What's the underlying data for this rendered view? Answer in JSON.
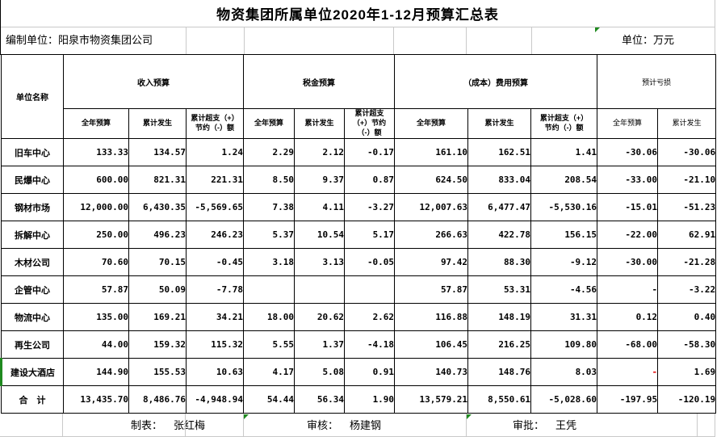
{
  "title": "物资集团所属单位2020年1-12月预算汇总表",
  "meta": {
    "prepared_by": "编制单位：阳泉市物资集团公司",
    "unit_note": "单位：万元"
  },
  "header": {
    "unit_col": "单位名称",
    "groups": [
      {
        "label": "收入预算",
        "cols": [
          "全年预算",
          "累计发生",
          "累计超支（+）\n节约（-）额"
        ]
      },
      {
        "label": "税金预算",
        "cols": [
          "全年预算",
          "累计发生",
          "累计超支\n（+）节约\n（-）额"
        ]
      },
      {
        "label": "（成本）费用预算",
        "cols": [
          "全年预算",
          "累计发生",
          "累计超支（+）\n节约（-）额"
        ]
      },
      {
        "label": "预计亏损",
        "cols": [
          "全年预算",
          "累计发生"
        ]
      }
    ]
  },
  "rows": [
    {
      "name": "旧车中心",
      "cells": [
        "133.33",
        "134.57",
        "1.24",
        "2.29",
        "2.12",
        "-0.17",
        "161.10",
        "162.51",
        "1.41",
        "-30.06",
        "-30.06"
      ]
    },
    {
      "name": "民爆中心",
      "cells": [
        "600.00",
        "821.31",
        "221.31",
        "8.50",
        "9.37",
        "0.87",
        "624.50",
        "833.04",
        "208.54",
        "-33.00",
        "-21.10"
      ]
    },
    {
      "name": "钢材市场",
      "cells": [
        "12,000.00",
        "6,430.35",
        "-5,569.65",
        "7.38",
        "4.11",
        "-3.27",
        "12,007.63",
        "6,477.47",
        "-5,530.16",
        "-15.01",
        "-51.23"
      ]
    },
    {
      "name": "拆解中心",
      "cells": [
        "250.00",
        "496.23",
        "246.23",
        "5.37",
        "10.54",
        "5.17",
        "266.63",
        "422.78",
        "156.15",
        "-22.00",
        "62.91"
      ]
    },
    {
      "name": "木材公司",
      "cells": [
        "70.60",
        "70.15",
        "-0.45",
        "3.18",
        "3.13",
        "-0.05",
        "97.42",
        "88.30",
        "-9.12",
        "-30.00",
        "-21.28"
      ]
    },
    {
      "name": "企管中心",
      "cells": [
        "57.87",
        "50.09",
        "-7.78",
        "",
        "",
        "",
        "57.87",
        "53.31",
        "-4.56",
        "-",
        "-3.22"
      ]
    },
    {
      "name": "物流中心",
      "cells": [
        "135.00",
        "169.21",
        "34.21",
        "18.00",
        "20.62",
        "2.62",
        "116.88",
        "148.19",
        "31.31",
        "0.12",
        "0.40"
      ]
    },
    {
      "name": "再生公司",
      "cells": [
        "44.00",
        "159.32",
        "115.32",
        "5.55",
        "1.37",
        "-4.18",
        "106.45",
        "216.25",
        "109.80",
        "-68.00",
        "-58.30"
      ]
    },
    {
      "name": "建设大酒店",
      "green_edge": true,
      "cells": [
        "144.90",
        "155.53",
        "10.63",
        "4.17",
        "5.08",
        "0.91",
        "140.73",
        "148.76",
        "8.03",
        {
          "t": "-",
          "c": "#e00000"
        },
        "1.69"
      ]
    },
    {
      "name": "合　计",
      "total": true,
      "cells": [
        "13,435.70",
        "8,486.76",
        "-4,948.94",
        "54.44",
        "56.34",
        "1.90",
        "13,579.21",
        "8,550.61",
        "-5,028.60",
        "-197.95",
        "-120.19"
      ]
    }
  ],
  "footer": {
    "maker_label": "制表：",
    "maker_name": "张红梅",
    "reviewer_label": "审核：",
    "reviewer_name": "杨建钢",
    "approver_label": "审批：",
    "approver_name": "王凭"
  },
  "colors": {
    "negative_dash_red": "#e00000",
    "indicator_green": "#1f8a1f"
  }
}
